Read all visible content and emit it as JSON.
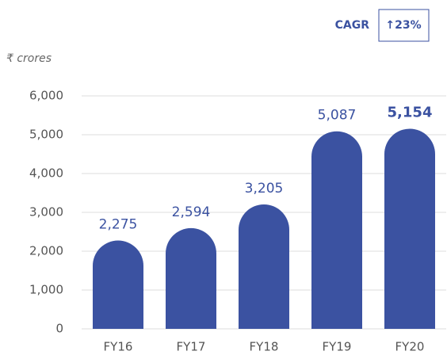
{
  "chart_data": {
    "type": "bar",
    "annotations": [
      "CAGR",
      "↑23%"
    ],
    "y_label": "₹ crores",
    "categories": [
      "FY16",
      "FY17",
      "FY18",
      "FY19",
      "FY20"
    ],
    "values": [
      2275,
      2594,
      3205,
      5087,
      5154
    ],
    "value_labels": [
      "2,275",
      "2,594",
      "3,205",
      "5,087",
      "5,154"
    ],
    "color": "#3b52a1",
    "ylim": [
      0,
      6000
    ],
    "yticks": [
      0,
      {
        "value": 1000,
        "label": "1,000"
      },
      {
        "value": 2000,
        "label": "2,000"
      },
      {
        "value": 3000,
        "label": "3,000"
      },
      {
        "value": 4000,
        "label": "4,000"
      },
      {
        "value": 5000,
        "label": "5,000"
      },
      {
        "value": 6000,
        "label": "6,000"
      }
    ],
    "grid": true
  }
}
